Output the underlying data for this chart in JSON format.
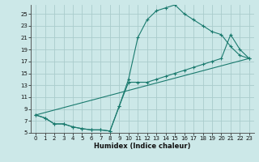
{
  "xlabel": "Humidex (Indice chaleur)",
  "bg_color": "#cce8e8",
  "grid_color": "#aacccc",
  "line_color": "#1a7a6e",
  "xlim": [
    -0.5,
    23.5
  ],
  "ylim": [
    5,
    26.5
  ],
  "xticks": [
    0,
    1,
    2,
    3,
    4,
    5,
    6,
    7,
    8,
    9,
    10,
    11,
    12,
    13,
    14,
    15,
    16,
    17,
    18,
    19,
    20,
    21,
    22,
    23
  ],
  "yticks": [
    5,
    7,
    9,
    11,
    13,
    15,
    17,
    19,
    21,
    23,
    25
  ],
  "line1_x": [
    0,
    1,
    2,
    3,
    4,
    5,
    6,
    7,
    8,
    9,
    10,
    11,
    12,
    13,
    14,
    15,
    16,
    17,
    18,
    19,
    20,
    21,
    22,
    23
  ],
  "line1_y": [
    8.0,
    7.5,
    6.5,
    6.5,
    6.0,
    5.7,
    5.5,
    5.5,
    5.3,
    9.5,
    14.0,
    21.0,
    24.0,
    25.5,
    26.0,
    26.5,
    25.0,
    24.0,
    23.0,
    22.0,
    21.5,
    19.5,
    18.0,
    17.5
  ],
  "line2_x": [
    0,
    1,
    2,
    3,
    4,
    5,
    6,
    7,
    8,
    9,
    10,
    11,
    12,
    13,
    14,
    15,
    16,
    17,
    18,
    19,
    20,
    21,
    22,
    23
  ],
  "line2_y": [
    8.0,
    7.5,
    6.5,
    6.5,
    6.0,
    5.7,
    5.5,
    5.5,
    5.3,
    9.5,
    13.5,
    13.5,
    13.5,
    14.0,
    14.5,
    15.0,
    15.5,
    16.0,
    16.5,
    17.0,
    17.5,
    21.5,
    19.0,
    17.5
  ],
  "line3_x": [
    0,
    23
  ],
  "line3_y": [
    8.0,
    17.5
  ]
}
